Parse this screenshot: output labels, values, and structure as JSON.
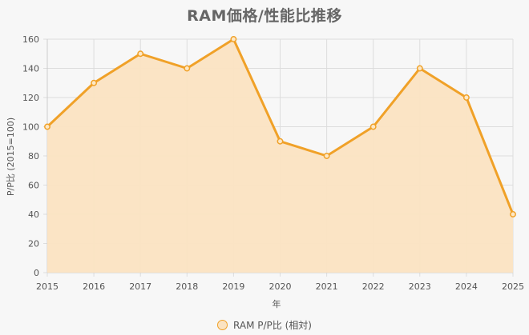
{
  "chart_data": {
    "type": "area",
    "title": "RAM価格/性能比推移",
    "xlabel": "年",
    "ylabel": "P/P比 (2015=100)",
    "categories": [
      "2015",
      "2016",
      "2017",
      "2018",
      "2019",
      "2020",
      "2021",
      "2022",
      "2023",
      "2024",
      "2025"
    ],
    "series": [
      {
        "name": "RAM P/P比 (相対)",
        "values": [
          100,
          130,
          150,
          140,
          160,
          90,
          80,
          100,
          140,
          120,
          40
        ]
      }
    ],
    "ylim": [
      0,
      160
    ],
    "yticks": [
      0,
      20,
      40,
      60,
      80,
      100,
      120,
      140,
      160
    ],
    "grid": true,
    "legend_position": "bottom",
    "colors": {
      "line": "#f0a128",
      "fill": "#fbe3c2",
      "point_fill": "#fde8c6",
      "grid": "#dddddd",
      "background": "#f7f7f7"
    }
  }
}
